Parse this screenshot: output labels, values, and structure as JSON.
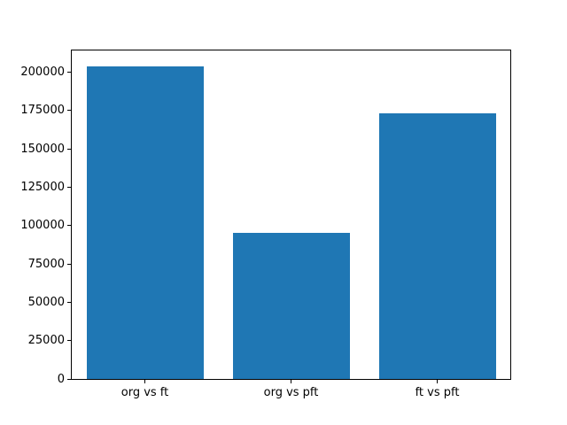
{
  "figure": {
    "background": "#ffffff"
  },
  "chart_data": {
    "type": "bar",
    "title": "",
    "xlabel": "",
    "ylabel": "",
    "categories": [
      "org vs ft",
      "org vs pft",
      "ft vs pft"
    ],
    "values": [
      204000,
      95000,
      173000
    ],
    "ylim": [
      0,
      214200
    ],
    "yticks": [
      0,
      25000,
      50000,
      75000,
      100000,
      125000,
      150000,
      175000,
      200000
    ],
    "bar_color": "#1f77b4",
    "bar_width_fraction": 0.8,
    "grid": false,
    "legend": null
  }
}
